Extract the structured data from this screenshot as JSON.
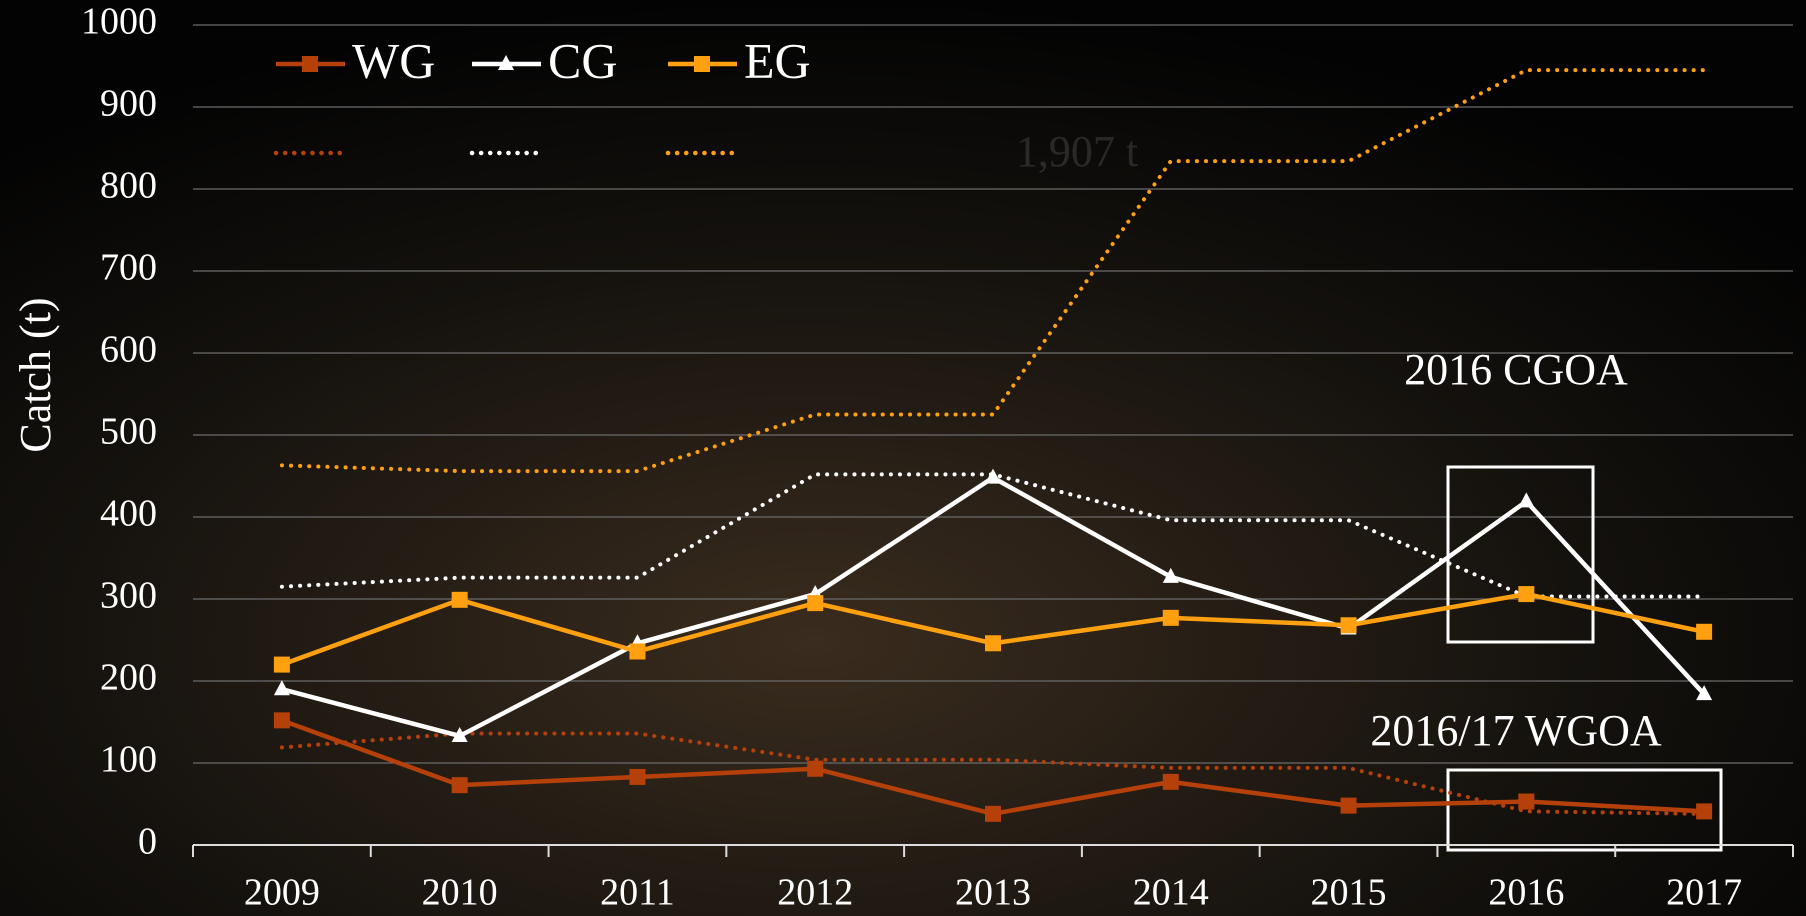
{
  "chart_data": {
    "type": "line",
    "y_label": "Catch (t)",
    "categories": [
      "2009",
      "2010",
      "2011",
      "2012",
      "2013",
      "2014",
      "2015",
      "2016",
      "2017"
    ],
    "ylim": [
      0,
      1000
    ],
    "yticks": [
      0,
      100,
      200,
      300,
      400,
      500,
      600,
      700,
      800,
      900,
      1000
    ],
    "grid": true,
    "legend": "top-left",
    "series": [
      {
        "name": "WG",
        "color": "#b5400a",
        "marker": "square",
        "style": "solid",
        "values": [
          152,
          73,
          83,
          93,
          38,
          77,
          48,
          53,
          41
        ]
      },
      {
        "name": "CG",
        "color": "#ffffff",
        "marker": "triangle",
        "style": "solid",
        "values": [
          190,
          133,
          246,
          306,
          448,
          327,
          264,
          419,
          184
        ]
      },
      {
        "name": "EG",
        "color": "#ffa010",
        "marker": "square",
        "style": "solid",
        "values": [
          220,
          299,
          236,
          295,
          246,
          277,
          268,
          306,
          260
        ]
      },
      {
        "color": "#b5400a",
        "style": "dotted",
        "values": [
          119,
          136,
          136,
          104,
          104,
          94,
          94,
          41,
          38
        ]
      },
      {
        "color": "#ffffff",
        "style": "dotted",
        "values": [
          315,
          326,
          326,
          452,
          452,
          396,
          396,
          303,
          303
        ]
      },
      {
        "color": "#ffa010",
        "style": "dotted",
        "values": [
          463,
          456,
          456,
          525,
          525,
          834,
          834,
          945,
          945
        ]
      }
    ],
    "annotations": [
      "2016 CGOA",
      "2016/17 WGOA",
      "1,907 t"
    ]
  }
}
